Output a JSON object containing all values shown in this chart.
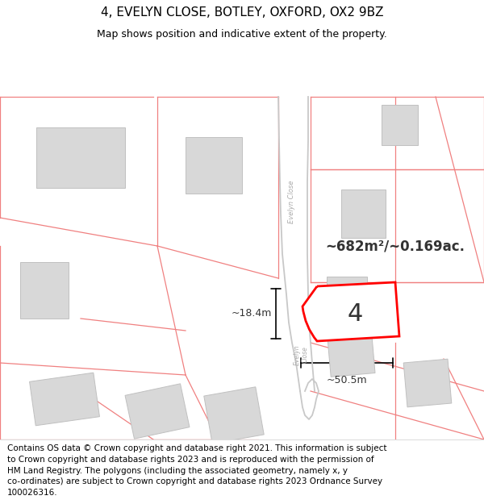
{
  "title": "4, EVELYN CLOSE, BOTLEY, OXFORD, OX2 9BZ",
  "subtitle": "Map shows position and indicative extent of the property.",
  "footer": "Contains OS data © Crown copyright and database right 2021. This information is subject\nto Crown copyright and database rights 2023 and is reproduced with the permission of\nHM Land Registry. The polygons (including the associated geometry, namely x, y\nco-ordinates) are subject to Crown copyright and database rights 2023 Ordnance Survey\n100026316.",
  "area_text": "~682m²/~0.169ac.",
  "dim_width": "~50.5m",
  "dim_height": "~18.4m",
  "label_number": "4",
  "map_bg": "#f5f5f5",
  "parcel_line_color": "#f08080",
  "building_fill": "#d8d8d8",
  "building_edge": "#c0c0c0",
  "road_color": "#c8c8c8",
  "highlight_color": "#ff0000",
  "title_fontsize": 11,
  "subtitle_fontsize": 9,
  "footer_fontsize": 7.5
}
